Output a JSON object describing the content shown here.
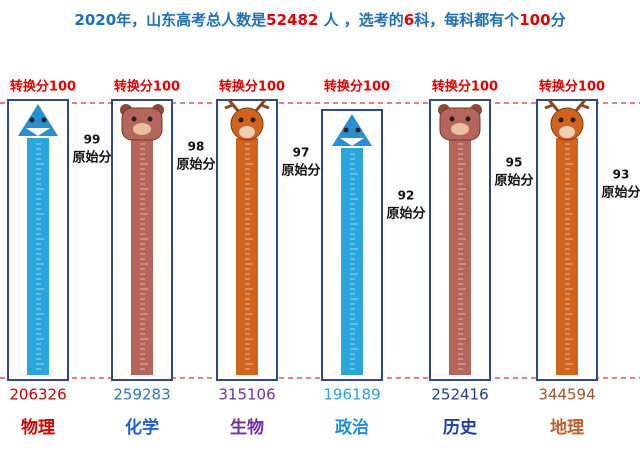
{
  "title": {
    "segments": [
      {
        "text": "2020年，山东高考总人数是",
        "color": "#1f6fb5"
      },
      {
        "text": "52482",
        "color": "#e00000"
      },
      {
        "text": " 人 ，选考的",
        "color": "#1f6fb5"
      },
      {
        "text": "6",
        "color": "#e00000"
      },
      {
        "text": "科，每科都有个",
        "color": "#1f6fb5"
      },
      {
        "text": "100",
        "color": "#e00000"
      },
      {
        "text": "分",
        "color": "#1f6fb5"
      }
    ]
  },
  "top_label": "转换分100",
  "raw_label": "原始分",
  "items": [
    {
      "subject": "物理",
      "raw_score": 99,
      "count": 206326,
      "count_color": "#c00000",
      "subject_color": "#d00000",
      "tube_color": "#2aa6dc",
      "icon": "shark"
    },
    {
      "subject": "化学",
      "raw_score": 98,
      "count": 259283,
      "count_color": "#2e75b6",
      "subject_color": "#1f5fd0",
      "tube_color": "#b5655a",
      "icon": "bear"
    },
    {
      "subject": "生物",
      "raw_score": 97,
      "count": 315106,
      "count_color": "#7030a0",
      "subject_color": "#7030a0",
      "tube_color": "#d0641e",
      "icon": "deer"
    },
    {
      "subject": "政治",
      "raw_score": 92,
      "count": 196189,
      "count_color": "#2ea0e0",
      "subject_color": "#1f8ee0",
      "tube_color": "#2aa6dc",
      "icon": "shark"
    },
    {
      "subject": "历史",
      "raw_score": 95,
      "count": 252416,
      "count_color": "#1f3f8f",
      "subject_color": "#1f3f9f",
      "tube_color": "#b5655a",
      "icon": "bear"
    },
    {
      "subject": "地理",
      "raw_score": 93,
      "count": 344594,
      "count_color": "#a0522d",
      "subject_color": "#c0602a",
      "tube_color": "#d0641e",
      "icon": "deer"
    }
  ]
}
